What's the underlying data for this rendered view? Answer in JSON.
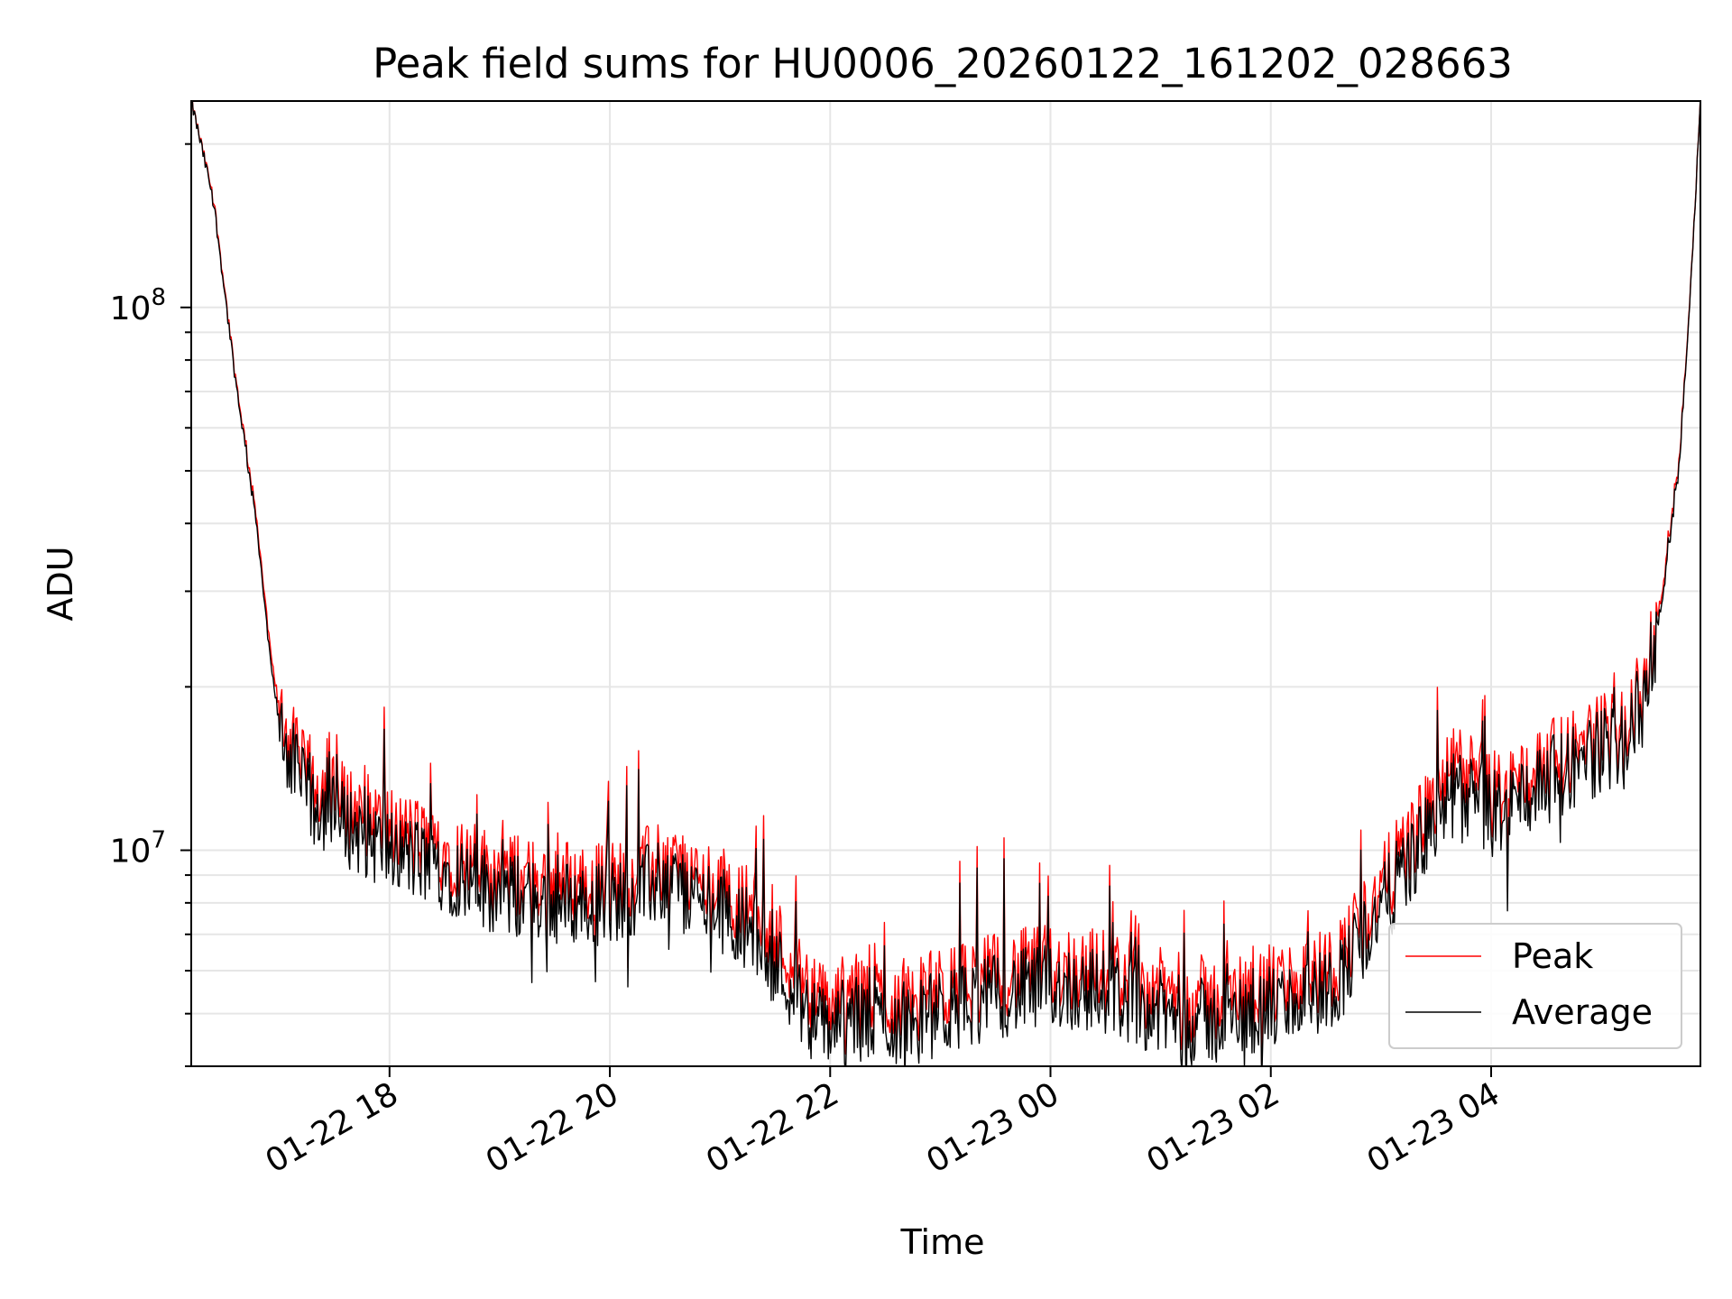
{
  "chart_data": {
    "type": "line",
    "title": "Peak field sums for HU0006_20260122_161202_028663",
    "xlabel": "Time",
    "ylabel": "ADU",
    "yscale": "log",
    "xlim_hours": [
      16.2,
      5.9
    ],
    "ylim": [
      4000000,
      240000000
    ],
    "grid": true,
    "legend_position": "lower-right",
    "x_ticks": [
      {
        "hour": 18,
        "label": "01-22 18"
      },
      {
        "hour": 20,
        "label": "01-22 20"
      },
      {
        "hour": 22,
        "label": "01-22 22"
      },
      {
        "hour": 24,
        "label": "01-23 00"
      },
      {
        "hour": 26,
        "label": "01-23 02"
      },
      {
        "hour": 28,
        "label": "01-23 04"
      }
    ],
    "y_ticks": [
      {
        "value": 10000000,
        "base": "10",
        "exp": "7"
      },
      {
        "value": 100000000,
        "base": "10",
        "exp": "8"
      }
    ],
    "x_time_hours": [
      16.2,
      16.4,
      16.6,
      16.8,
      16.9,
      17.0,
      17.2,
      17.5,
      18.0,
      18.5,
      19.0,
      19.5,
      20.0,
      20.5,
      21.0,
      21.3,
      21.6,
      21.9,
      22.2,
      22.6,
      23.0,
      23.5,
      24.0,
      24.5,
      25.0,
      25.5,
      26.0,
      26.3,
      26.6,
      27.0,
      27.4,
      27.7,
      28.0,
      28.4,
      28.8,
      29.2,
      29.4,
      29.55,
      29.7,
      29.8,
      29.9
    ],
    "series": [
      {
        "name": "Peak",
        "color": "#ff0000",
        "values": [
          240000000,
          160000000,
          75000000,
          40000000,
          25000000,
          18000000,
          14000000,
          12500000,
          11000000,
          10000000,
          9000000,
          8800000,
          8700000,
          9500000,
          8500000,
          7800000,
          6500000,
          5200000,
          5400000,
          5300000,
          5500000,
          5900000,
          6100000,
          6000000,
          5500000,
          5300000,
          5600000,
          5800000,
          6200000,
          8500000,
          11500000,
          14500000,
          12500000,
          14000000,
          15500000,
          17000000,
          20000000,
          30000000,
          50000000,
          100000000,
          240000000
        ]
      },
      {
        "name": "Average",
        "color": "#000000",
        "values": [
          240000000,
          158000000,
          74000000,
          39000000,
          24000000,
          17000000,
          13000000,
          11500000,
          10000000,
          9200000,
          8300000,
          8000000,
          8000000,
          8800000,
          7800000,
          7100000,
          5800000,
          4700000,
          4900000,
          4800000,
          5000000,
          5400000,
          5600000,
          5500000,
          5000000,
          4800000,
          5100000,
          5300000,
          5700000,
          7800000,
          10500000,
          13000000,
          11500000,
          13000000,
          14500000,
          16000000,
          19000000,
          29000000,
          49000000,
          99000000,
          240000000
        ]
      }
    ]
  }
}
